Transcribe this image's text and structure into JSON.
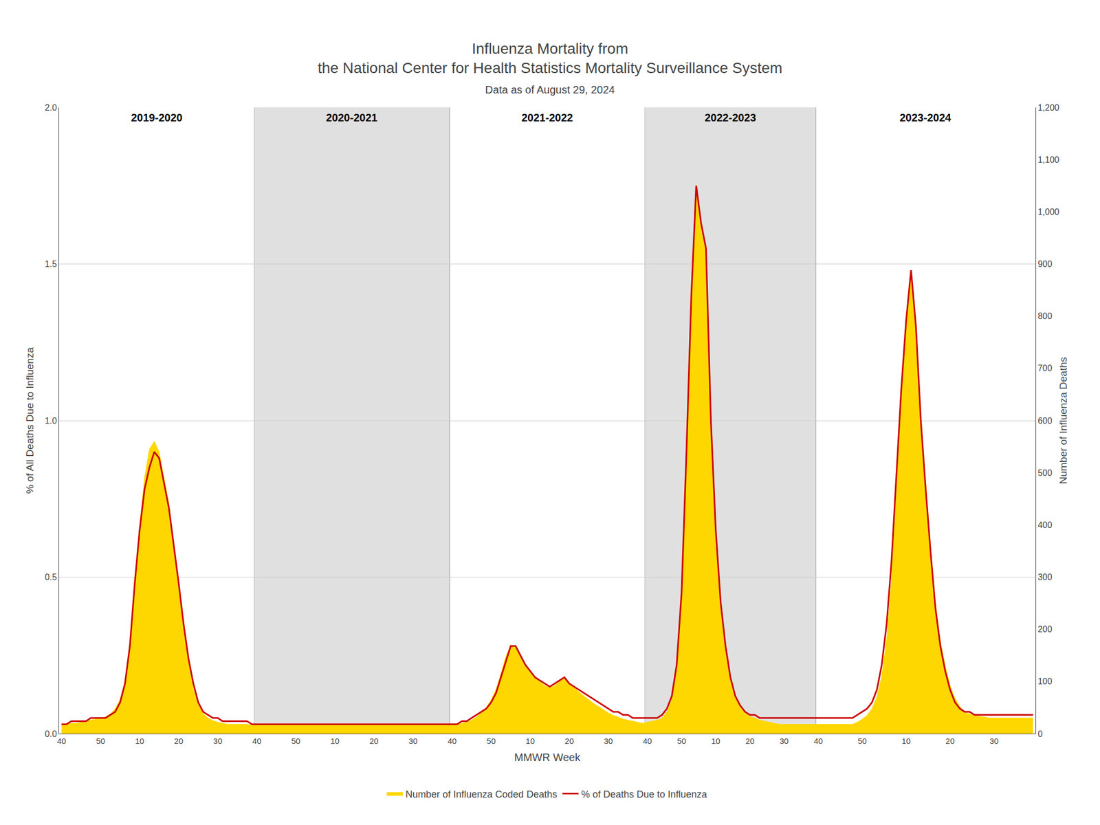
{
  "chart_data": {
    "type": "line",
    "title": "Influenza Mortality from\nthe National Center for Health Statistics Mortality Surveillance System",
    "subtitle": "Data as of August 29, 2024",
    "xlabel": "MMWR Week",
    "ylabel": "% of All Deaths Due to Influenza",
    "y2label": "Number of Influenza Deaths",
    "ylim": [
      0.0,
      2.0
    ],
    "yticks": [
      {
        "value": 0,
        "label": "0.0"
      },
      0.5,
      {
        "value": 1,
        "label": "1.0"
      },
      1.5,
      {
        "value": 2,
        "label": "2.0"
      }
    ],
    "y2lim": [
      0,
      1200
    ],
    "y2ticks": [
      0,
      100,
      200,
      300,
      400,
      500,
      600,
      700,
      800,
      900,
      {
        "value": 1000,
        "label": "1,000"
      },
      {
        "value": 1100,
        "label": "1,100"
      },
      {
        "value": 1200,
        "label": "1,200"
      }
    ],
    "grid": true,
    "legend": "bottom",
    "seasons": [
      {
        "label": "2019-2020",
        "count": 40
      },
      {
        "label": "2020-2021",
        "count": 40,
        "color": "#e0e0e0"
      },
      {
        "label": "2021-2022",
        "count": 40
      },
      {
        "label": "2022-2023",
        "count": 35,
        "color": "#e0e0e0"
      },
      {
        "label": "2023-2024",
        "count": 45
      }
    ],
    "categories": [
      "40",
      null,
      null,
      null,
      null,
      null,
      null,
      null,
      "50",
      null,
      null,
      null,
      null,
      null,
      null,
      null,
      "10",
      null,
      null,
      null,
      null,
      null,
      null,
      null,
      "20",
      null,
      null,
      null,
      null,
      null,
      null,
      null,
      "30",
      null,
      null,
      null,
      null,
      null,
      null,
      null,
      "40",
      null,
      null,
      null,
      null,
      null,
      null,
      null,
      "50",
      null,
      null,
      null,
      null,
      null,
      null,
      null,
      "10",
      null,
      null,
      null,
      null,
      null,
      null,
      null,
      "20",
      null,
      null,
      null,
      null,
      null,
      null,
      null,
      "30",
      null,
      null,
      null,
      null,
      null,
      null,
      null,
      "40",
      null,
      null,
      null,
      null,
      null,
      null,
      null,
      "50",
      null,
      null,
      null,
      null,
      null,
      null,
      null,
      "10",
      null,
      null,
      null,
      null,
      null,
      null,
      null,
      "20",
      null,
      null,
      null,
      null,
      null,
      null,
      null,
      "30",
      null,
      null,
      null,
      null,
      null,
      null,
      null,
      "40",
      null,
      null,
      null,
      null,
      null,
      null,
      "50",
      null,
      null,
      null,
      null,
      null,
      null,
      "10",
      null,
      null,
      null,
      null,
      null,
      null,
      "20",
      null,
      null,
      null,
      null,
      null,
      null,
      "30",
      null,
      null,
      null,
      null,
      null,
      null,
      "40",
      null,
      null,
      null,
      null,
      null,
      null,
      null,
      null,
      "50",
      null,
      null,
      null,
      null,
      null,
      null,
      null,
      null,
      "10",
      null,
      null,
      null,
      null,
      null,
      null,
      null,
      null,
      "20",
      null,
      null,
      null,
      null,
      null,
      null,
      null,
      null,
      "30",
      null,
      null,
      null,
      null,
      null,
      null,
      null,
      null
    ],
    "series": [
      {
        "name": "Number of Influenza Coded Deaths",
        "type": "area",
        "color": "#FFD700",
        "axis": "y2",
        "values": [
          18,
          18,
          20,
          20,
          22,
          24,
          26,
          28,
          30,
          32,
          38,
          48,
          65,
          100,
          165,
          280,
          395,
          490,
          545,
          560,
          540,
          490,
          440,
          360,
          280,
          200,
          135,
          85,
          55,
          38,
          30,
          25,
          22,
          20,
          18,
          18,
          18,
          18,
          18,
          16,
          16,
          16,
          16,
          16,
          16,
          16,
          16,
          16,
          16,
          16,
          16,
          16,
          16,
          16,
          16,
          16,
          16,
          16,
          16,
          16,
          16,
          16,
          16,
          16,
          16,
          16,
          16,
          16,
          16,
          16,
          16,
          16,
          16,
          16,
          16,
          16,
          16,
          16,
          16,
          16,
          18,
          18,
          20,
          22,
          26,
          32,
          40,
          50,
          65,
          85,
          115,
          148,
          168,
          165,
          148,
          130,
          118,
          108,
          100,
          92,
          88,
          92,
          100,
          108,
          96,
          88,
          80,
          72,
          65,
          58,
          52,
          46,
          40,
          35,
          32,
          28,
          26,
          24,
          22,
          20,
          22,
          24,
          26,
          30,
          42,
          65,
          118,
          260,
          530,
          840,
          1050,
          965,
          920,
          605,
          385,
          250,
          162,
          108,
          70,
          50,
          40,
          33,
          30,
          26,
          24,
          22,
          20,
          18,
          18,
          18,
          18,
          18,
          18,
          18,
          18,
          18,
          18,
          18,
          18,
          18,
          18,
          18,
          18,
          22,
          28,
          35,
          48,
          70,
          110,
          180,
          295,
          460,
          640,
          775,
          870,
          778,
          605,
          480,
          358,
          248,
          178,
          130,
          92,
          68,
          52,
          40,
          38,
          35,
          33,
          32,
          30,
          30,
          30,
          30,
          30,
          30,
          30,
          30,
          30,
          30
        ]
      },
      {
        "name": "% of Deaths Due to Influenza",
        "type": "line",
        "color": "#CC0000",
        "values": [
          0.03,
          0.03,
          0.04,
          0.04,
          0.04,
          0.04,
          0.05,
          0.05,
          0.05,
          0.05,
          0.06,
          0.07,
          0.1,
          0.16,
          0.28,
          0.48,
          0.65,
          0.78,
          0.85,
          0.9,
          0.88,
          0.8,
          0.72,
          0.6,
          0.48,
          0.35,
          0.24,
          0.16,
          0.1,
          0.07,
          0.06,
          0.05,
          0.05,
          0.04,
          0.04,
          0.04,
          0.04,
          0.04,
          0.04,
          0.03,
          0.03,
          0.03,
          0.03,
          0.03,
          0.03,
          0.03,
          0.03,
          0.03,
          0.03,
          0.03,
          0.03,
          0.03,
          0.03,
          0.03,
          0.03,
          0.03,
          0.03,
          0.03,
          0.03,
          0.03,
          0.03,
          0.03,
          0.03,
          0.03,
          0.03,
          0.03,
          0.03,
          0.03,
          0.03,
          0.03,
          0.03,
          0.03,
          0.03,
          0.03,
          0.03,
          0.03,
          0.03,
          0.03,
          0.03,
          0.03,
          0.03,
          0.03,
          0.04,
          0.04,
          0.05,
          0.06,
          0.07,
          0.08,
          0.1,
          0.13,
          0.18,
          0.23,
          0.28,
          0.28,
          0.25,
          0.22,
          0.2,
          0.18,
          0.17,
          0.16,
          0.15,
          0.16,
          0.17,
          0.18,
          0.16,
          0.15,
          0.14,
          0.13,
          0.12,
          0.11,
          0.1,
          0.09,
          0.08,
          0.07,
          0.07,
          0.06,
          0.06,
          0.05,
          0.05,
          0.05,
          0.05,
          0.05,
          0.05,
          0.06,
          0.08,
          0.12,
          0.22,
          0.45,
          0.9,
          1.4,
          1.75,
          1.63,
          1.55,
          1.0,
          0.65,
          0.42,
          0.28,
          0.18,
          0.12,
          0.09,
          0.07,
          0.06,
          0.06,
          0.05,
          0.05,
          0.05,
          0.05,
          0.05,
          0.05,
          0.05,
          0.05,
          0.05,
          0.05,
          0.05,
          0.05,
          0.05,
          0.05,
          0.05,
          0.05,
          0.05,
          0.05,
          0.05,
          0.05,
          0.06,
          0.07,
          0.08,
          0.1,
          0.14,
          0.22,
          0.35,
          0.55,
          0.82,
          1.1,
          1.32,
          1.48,
          1.3,
          1.0,
          0.78,
          0.58,
          0.4,
          0.28,
          0.2,
          0.14,
          0.1,
          0.08,
          0.07,
          0.07,
          0.06,
          0.06,
          0.06,
          0.06,
          0.06,
          0.06,
          0.06,
          0.06,
          0.06,
          0.06,
          0.06,
          0.06,
          0.06
        ]
      }
    ]
  }
}
